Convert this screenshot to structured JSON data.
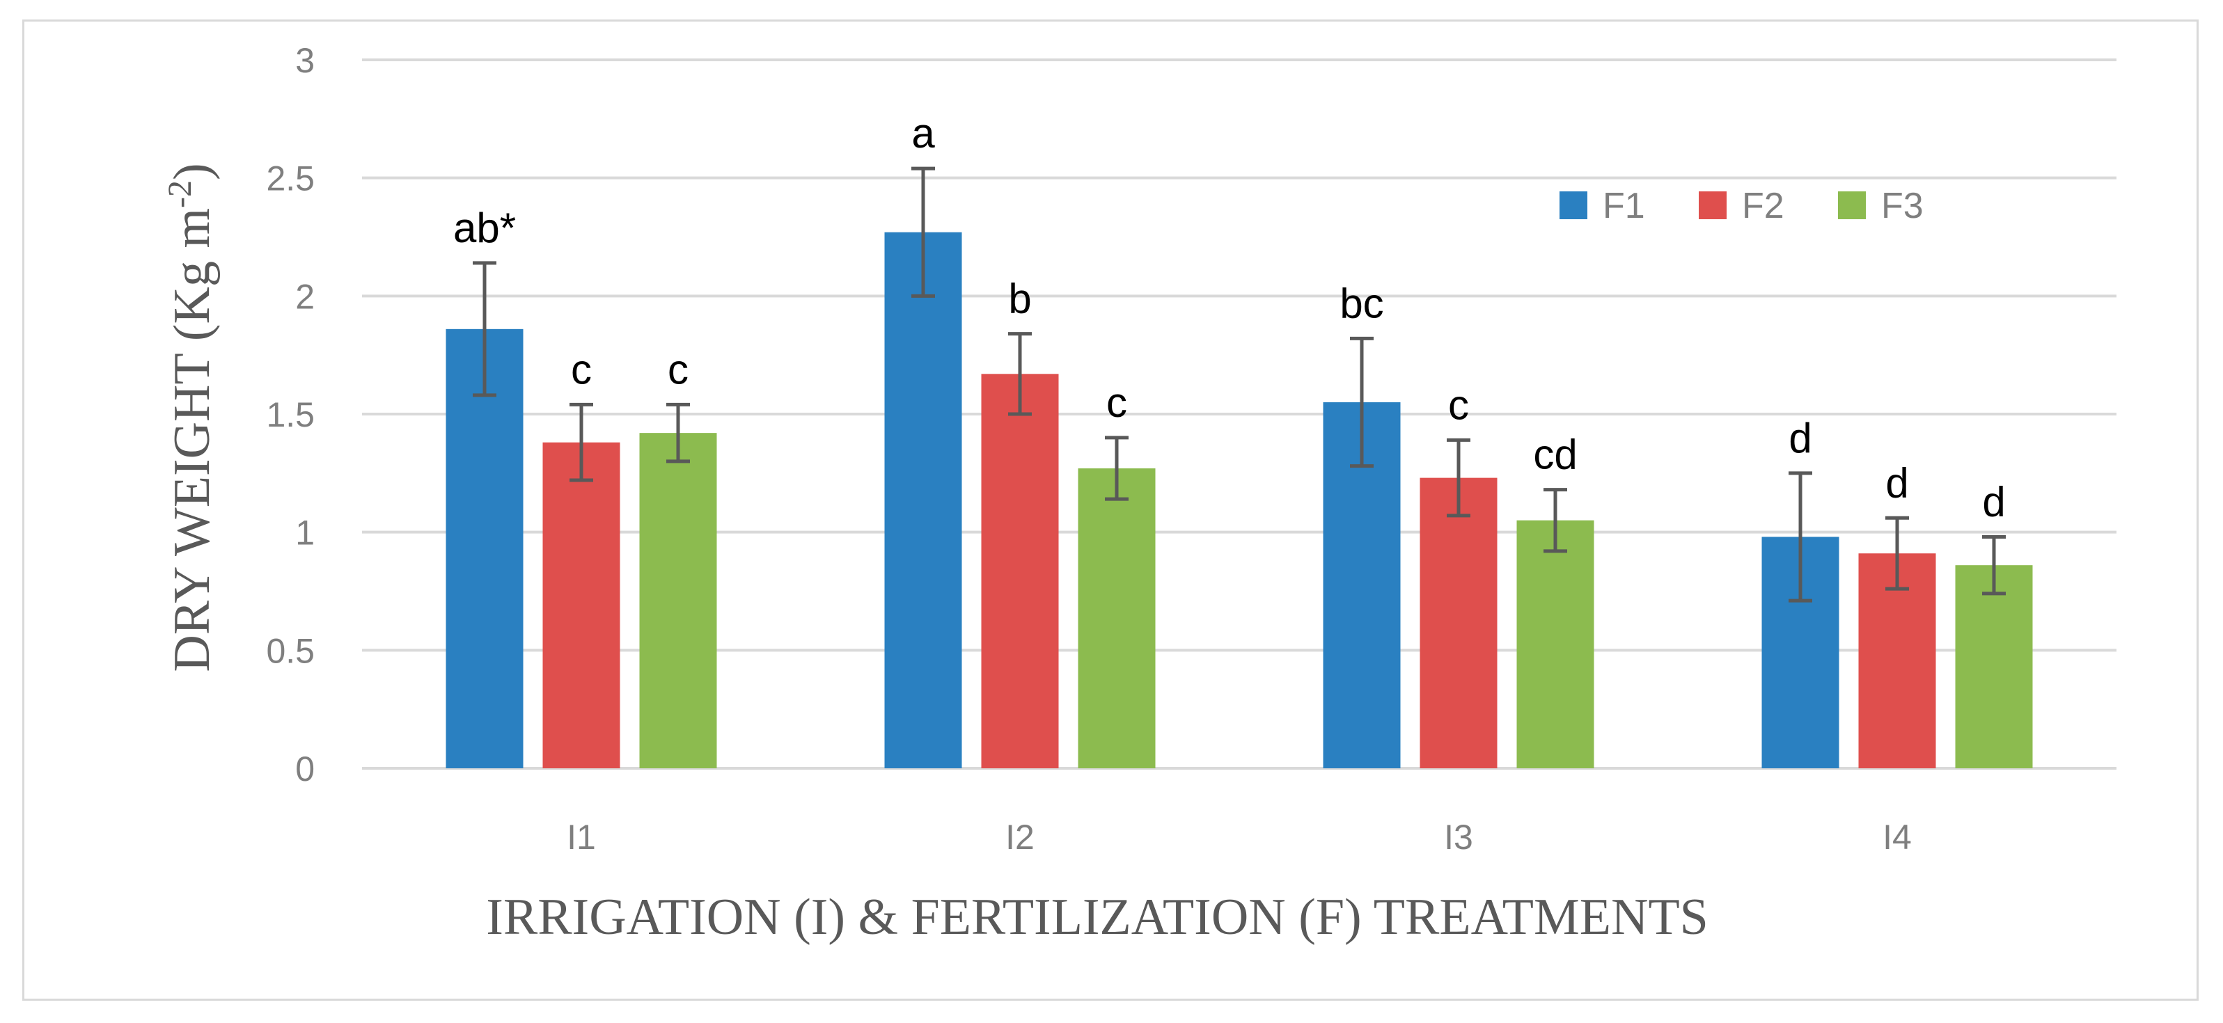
{
  "chart_data": {
    "type": "bar",
    "title": "",
    "xlabel": "IRRIGATION (I) & FERTILIZATION (F) TREATMENTS",
    "ylabel": "DRY WEIGHT (Kg m",
    "ylabel_sup": "-2",
    "ylabel_close": ")",
    "ylim": [
      0,
      3
    ],
    "yticks": [
      "0",
      "0.5",
      "1",
      "1.5",
      "2",
      "2.5",
      "3"
    ],
    "grid": true,
    "legend_position": "top-right",
    "categories": [
      "I1",
      "I2",
      "I3",
      "I4"
    ],
    "series": [
      {
        "name": "F1",
        "color": "#2a80c1",
        "values": [
          1.86,
          2.27,
          1.55,
          0.98
        ],
        "errors": [
          0.28,
          0.27,
          0.27,
          0.27
        ],
        "labels": [
          "ab*",
          "a",
          "bc",
          "d"
        ]
      },
      {
        "name": "F2",
        "color": "#df4f4d",
        "values": [
          1.38,
          1.67,
          1.23,
          0.91
        ],
        "errors": [
          0.16,
          0.17,
          0.16,
          0.15
        ],
        "labels": [
          "c",
          "b",
          "c",
          "d"
        ]
      },
      {
        "name": "F3",
        "color": "#8cbb4f",
        "values": [
          1.42,
          1.27,
          1.05,
          0.86
        ],
        "errors": [
          0.12,
          0.13,
          0.13,
          0.12
        ],
        "labels": [
          "c",
          "c",
          "cd",
          "d"
        ]
      }
    ]
  }
}
